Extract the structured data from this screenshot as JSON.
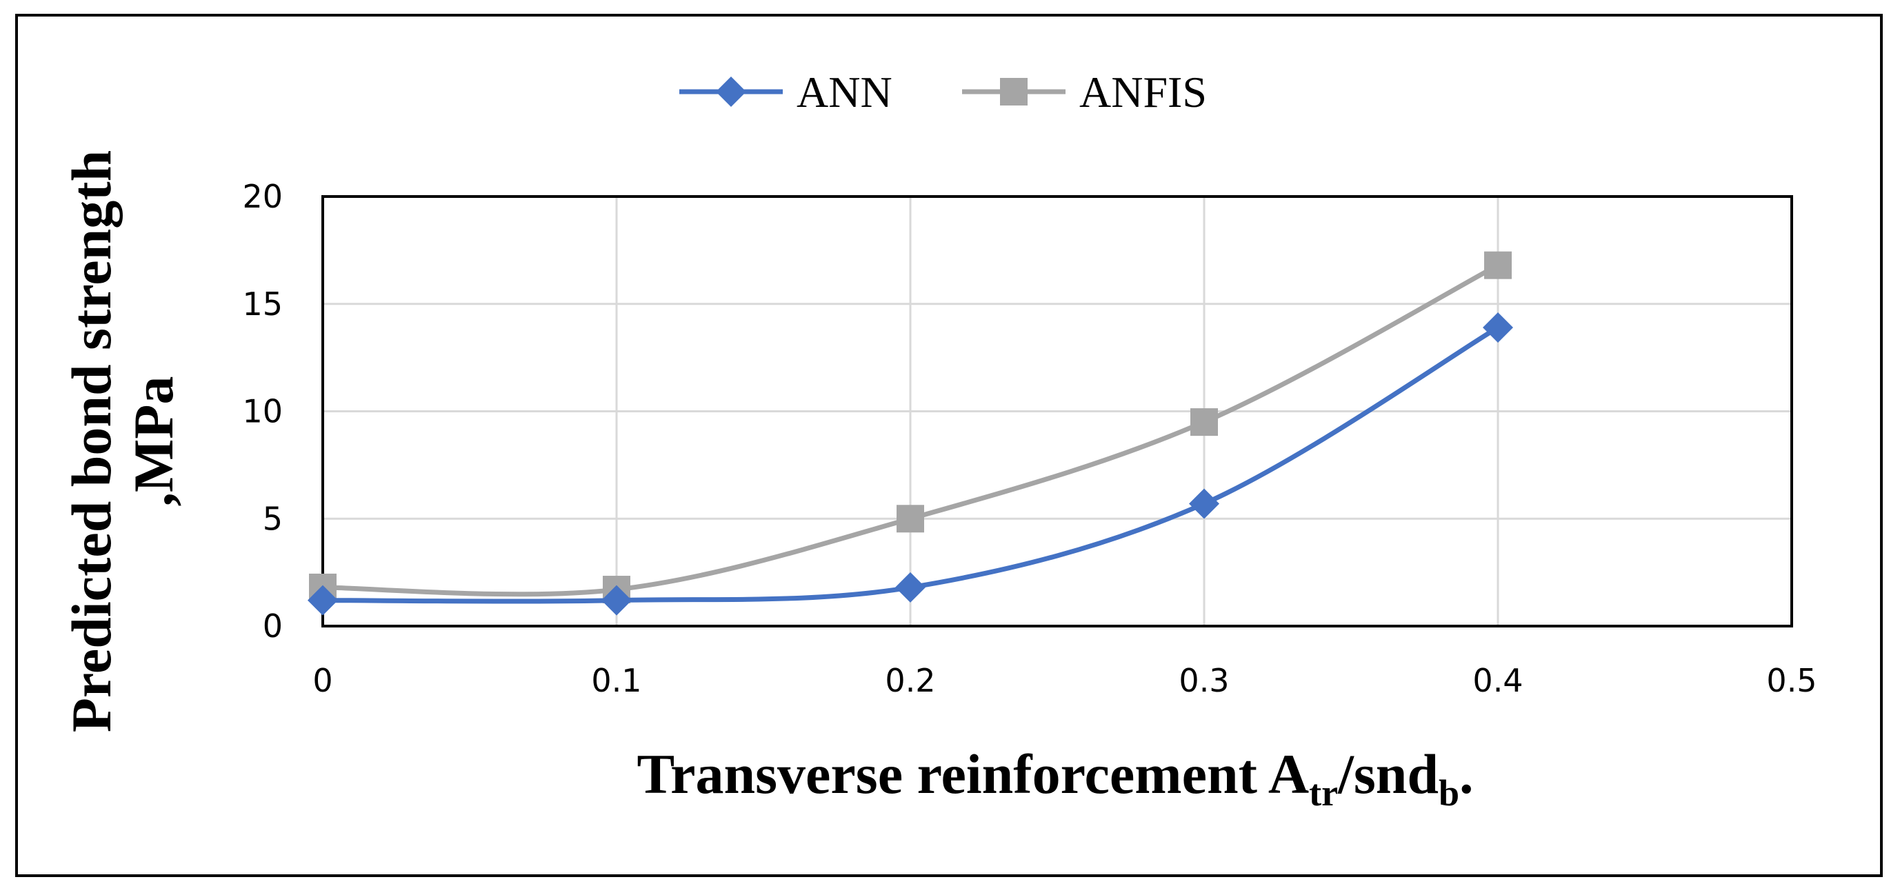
{
  "chart_data": {
    "type": "line",
    "x": [
      0,
      0.1,
      0.2,
      0.3,
      0.4
    ],
    "series": [
      {
        "name": "ANN",
        "values": [
          1.2,
          1.2,
          1.8,
          5.7,
          13.9
        ],
        "color": "#4472C4",
        "marker": "diamond"
      },
      {
        "name": "ANFIS",
        "values": [
          1.8,
          1.7,
          5.0,
          9.5,
          16.8
        ],
        "color": "#A5A5A5",
        "marker": "square"
      }
    ],
    "xlim": [
      0,
      0.5
    ],
    "ylim": [
      0,
      20
    ],
    "xticks": [
      "0",
      "0.1",
      "0.2",
      "0.3",
      "0.4",
      "0.5"
    ],
    "yticks": [
      "0",
      "5",
      "10",
      "15",
      "20"
    ],
    "xlabel": {
      "main": "Transverse reinforcement A",
      "sub1": "tr",
      "middle": "/snd",
      "sub2": "b",
      "end": "."
    },
    "ylabel": {
      "line1": "Predicted  bond strength",
      "line2": ",MPa"
    },
    "grid": true,
    "legend_position": "top-center",
    "smooth": true
  }
}
